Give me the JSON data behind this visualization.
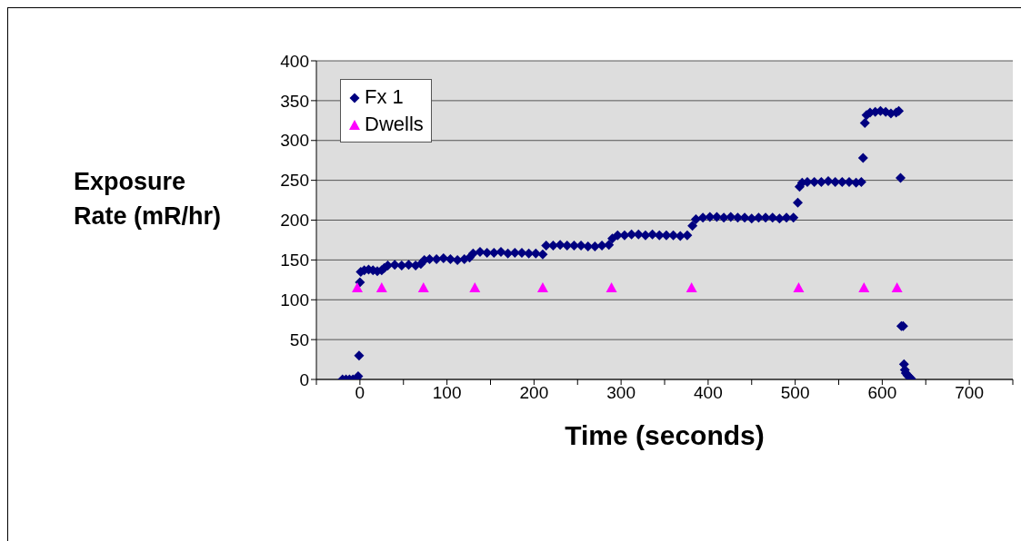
{
  "chart_data": {
    "type": "scatter",
    "xlabel": "Time (seconds)",
    "ylabel": "Exposure Rate (mR/hr)",
    "xlim": [
      -50,
      750
    ],
    "xticks": [
      {
        "value": -50,
        "label": null
      },
      0,
      {
        "value": 50,
        "label": null
      },
      100,
      {
        "value": 150,
        "label": null
      },
      200,
      {
        "value": 250,
        "label": null
      },
      300,
      {
        "value": 350,
        "label": null
      },
      400,
      {
        "value": 450,
        "label": null
      },
      500,
      {
        "value": 550,
        "label": null
      },
      600,
      {
        "value": 650,
        "label": null
      },
      700,
      {
        "value": 750,
        "label": null
      }
    ],
    "ylim": [
      0,
      400
    ],
    "yticks": [
      0,
      50,
      100,
      150,
      200,
      250,
      300,
      350,
      400
    ],
    "grid": "y",
    "legend": "top left",
    "series": [
      {
        "name": "Fx 1",
        "color": "#000080",
        "marker": "diamond",
        "x": [
          -20,
          -16,
          -12,
          -8,
          -4,
          -2,
          -1,
          0,
          1,
          5,
          10,
          15,
          20,
          25,
          28,
          32,
          40,
          48,
          56,
          64,
          70,
          74,
          80,
          88,
          96,
          104,
          112,
          120,
          126,
          130,
          138,
          146,
          154,
          162,
          170,
          178,
          186,
          194,
          202,
          210,
          214,
          222,
          230,
          238,
          246,
          254,
          262,
          270,
          278,
          286,
          290,
          296,
          304,
          312,
          320,
          328,
          336,
          344,
          352,
          360,
          368,
          376,
          382,
          386,
          394,
          402,
          410,
          418,
          426,
          434,
          442,
          450,
          458,
          466,
          474,
          482,
          490,
          498,
          503,
          505,
          508,
          514,
          522,
          530,
          538,
          546,
          554,
          562,
          570,
          576,
          578,
          580,
          582,
          586,
          592,
          598,
          604,
          610,
          616,
          619,
          621,
          622,
          624,
          625,
          626,
          627,
          629,
          631,
          633
        ],
        "values": [
          0,
          0,
          0,
          0,
          1,
          4,
          30,
          122,
          135,
          137,
          138,
          137,
          136,
          137,
          140,
          143,
          144,
          143,
          144,
          143,
          145,
          150,
          151,
          151,
          152,
          151,
          150,
          151,
          153,
          158,
          160,
          159,
          159,
          160,
          158,
          159,
          159,
          158,
          158,
          157,
          168,
          168,
          169,
          168,
          168,
          168,
          167,
          167,
          168,
          169,
          177,
          181,
          181,
          182,
          182,
          181,
          182,
          181,
          181,
          181,
          180,
          181,
          193,
          201,
          203,
          204,
          204,
          203,
          204,
          203,
          203,
          202,
          203,
          203,
          203,
          202,
          203,
          203,
          222,
          242,
          247,
          248,
          248,
          248,
          249,
          248,
          248,
          248,
          247,
          248,
          278,
          322,
          332,
          335,
          336,
          337,
          336,
          334,
          335,
          337,
          253,
          67,
          67,
          19,
          12,
          8,
          5,
          3,
          1
        ]
      },
      {
        "name": "Dwells",
        "color": "#ff00ff",
        "marker": "triangle",
        "x": [
          -3,
          25,
          73,
          132,
          210,
          289,
          381,
          504,
          579,
          617
        ],
        "values": [
          115,
          115,
          115,
          115,
          115,
          115,
          115,
          115,
          115,
          115
        ]
      }
    ]
  }
}
